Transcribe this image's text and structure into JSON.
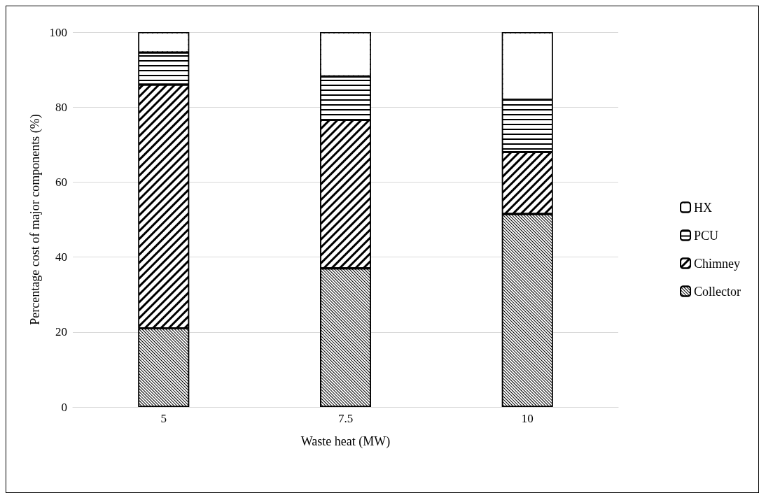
{
  "chart_data": {
    "type": "bar",
    "stacked": true,
    "xlabel": "Waste heat (MW)",
    "ylabel": "Percentage cost of major components (%)",
    "categories": [
      "5",
      "7.5",
      "10"
    ],
    "series": [
      {
        "name": "Collector",
        "color": "#000000",
        "values": [
          21,
          37,
          51.5
        ]
      },
      {
        "name": "Chimney",
        "color": "#000000",
        "values": [
          65,
          39.6,
          16.5
        ]
      },
      {
        "name": "PCU",
        "color": "#000000",
        "values": [
          8.6,
          11.6,
          14
        ]
      },
      {
        "name": "HX",
        "color": "#000000",
        "values": [
          5.4,
          11.8,
          18
        ]
      }
    ],
    "ylim": [
      0,
      100
    ],
    "yticks": [
      0,
      20,
      40,
      60,
      80,
      100
    ],
    "grid": "y",
    "legend": "right"
  }
}
